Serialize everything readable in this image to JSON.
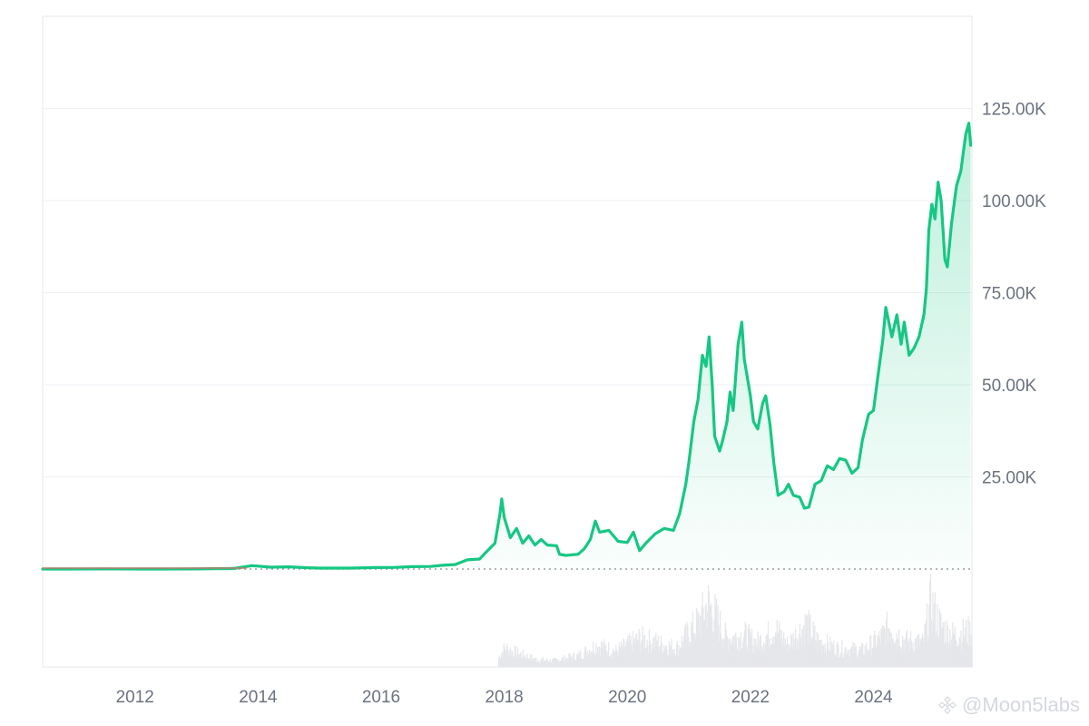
{
  "chart_data": {
    "type": "area",
    "series": [
      {
        "name": "",
        "color": "#16c784",
        "points": [
          [
            2010.5,
            0.1
          ],
          [
            2011.0,
            0.3
          ],
          [
            2011.5,
            15
          ],
          [
            2012.0,
            5
          ],
          [
            2012.5,
            7
          ],
          [
            2013.0,
            13
          ],
          [
            2013.3,
            100
          ],
          [
            2013.6,
            120
          ],
          [
            2013.9,
            900
          ],
          [
            2014.0,
            800
          ],
          [
            2014.2,
            500
          ],
          [
            2014.5,
            600
          ],
          [
            2014.8,
            350
          ],
          [
            2015.0,
            250
          ],
          [
            2015.5,
            250
          ],
          [
            2015.9,
            400
          ],
          [
            2016.2,
            420
          ],
          [
            2016.5,
            650
          ],
          [
            2016.8,
            700
          ],
          [
            2017.0,
            1000
          ],
          [
            2017.2,
            1200
          ],
          [
            2017.4,
            2500
          ],
          [
            2017.6,
            2700
          ],
          [
            2017.7,
            4500
          ],
          [
            2017.85,
            7000
          ],
          [
            2017.93,
            15000
          ],
          [
            2017.96,
            19000
          ],
          [
            2018.0,
            14000
          ],
          [
            2018.1,
            8500
          ],
          [
            2018.2,
            11000
          ],
          [
            2018.3,
            7000
          ],
          [
            2018.4,
            9000
          ],
          [
            2018.5,
            6500
          ],
          [
            2018.6,
            8000
          ],
          [
            2018.7,
            6500
          ],
          [
            2018.85,
            6300
          ],
          [
            2018.9,
            4000
          ],
          [
            2019.0,
            3700
          ],
          [
            2019.2,
            4000
          ],
          [
            2019.3,
            5500
          ],
          [
            2019.4,
            8000
          ],
          [
            2019.48,
            13000
          ],
          [
            2019.55,
            10000
          ],
          [
            2019.7,
            10500
          ],
          [
            2019.85,
            7500
          ],
          [
            2020.0,
            7200
          ],
          [
            2020.1,
            10000
          ],
          [
            2020.2,
            5000
          ],
          [
            2020.3,
            7000
          ],
          [
            2020.45,
            9500
          ],
          [
            2020.6,
            11000
          ],
          [
            2020.75,
            10500
          ],
          [
            2020.85,
            15000
          ],
          [
            2020.95,
            23000
          ],
          [
            2021.0,
            29000
          ],
          [
            2021.08,
            40000
          ],
          [
            2021.15,
            46000
          ],
          [
            2021.22,
            58000
          ],
          [
            2021.28,
            55000
          ],
          [
            2021.33,
            63000
          ],
          [
            2021.38,
            50000
          ],
          [
            2021.42,
            36000
          ],
          [
            2021.5,
            32000
          ],
          [
            2021.55,
            35000
          ],
          [
            2021.62,
            40000
          ],
          [
            2021.67,
            48000
          ],
          [
            2021.72,
            43000
          ],
          [
            2021.8,
            61000
          ],
          [
            2021.86,
            67000
          ],
          [
            2021.9,
            57000
          ],
          [
            2022.0,
            47000
          ],
          [
            2022.05,
            40000
          ],
          [
            2022.12,
            38000
          ],
          [
            2022.2,
            45000
          ],
          [
            2022.25,
            47000
          ],
          [
            2022.32,
            39000
          ],
          [
            2022.38,
            29000
          ],
          [
            2022.45,
            20000
          ],
          [
            2022.55,
            21000
          ],
          [
            2022.62,
            23000
          ],
          [
            2022.7,
            20000
          ],
          [
            2022.8,
            19500
          ],
          [
            2022.88,
            16500
          ],
          [
            2022.95,
            16800
          ],
          [
            2023.05,
            23000
          ],
          [
            2023.15,
            24000
          ],
          [
            2023.25,
            28000
          ],
          [
            2023.35,
            27000
          ],
          [
            2023.45,
            30000
          ],
          [
            2023.55,
            29500
          ],
          [
            2023.65,
            26000
          ],
          [
            2023.75,
            27500
          ],
          [
            2023.82,
            35000
          ],
          [
            2023.92,
            42000
          ],
          [
            2024.0,
            43000
          ],
          [
            2024.07,
            52000
          ],
          [
            2024.15,
            62000
          ],
          [
            2024.2,
            71000
          ],
          [
            2024.3,
            63000
          ],
          [
            2024.38,
            69000
          ],
          [
            2024.45,
            61000
          ],
          [
            2024.5,
            67000
          ],
          [
            2024.58,
            58000
          ],
          [
            2024.66,
            60000
          ],
          [
            2024.74,
            63000
          ],
          [
            2024.82,
            69000
          ],
          [
            2024.86,
            76000
          ],
          [
            2024.9,
            92000
          ],
          [
            2024.95,
            99000
          ],
          [
            2025.0,
            95000
          ],
          [
            2025.05,
            105000
          ],
          [
            2025.1,
            100000
          ],
          [
            2025.16,
            84000
          ],
          [
            2025.2,
            82000
          ],
          [
            2025.27,
            94000
          ],
          [
            2025.35,
            104000
          ],
          [
            2025.42,
            108000
          ],
          [
            2025.5,
            118000
          ],
          [
            2025.55,
            121000
          ],
          [
            2025.58,
            115000
          ]
        ]
      }
    ],
    "x_range": [
      2010.5,
      2025.6
    ],
    "y_range": [
      0,
      150000
    ],
    "x_ticks": [
      {
        "value": 2012,
        "label": "2012"
      },
      {
        "value": 2014,
        "label": "2014"
      },
      {
        "value": 2016,
        "label": "2016"
      },
      {
        "value": 2018,
        "label": "2018"
      },
      {
        "value": 2020,
        "label": "2020"
      },
      {
        "value": 2022,
        "label": "2022"
      },
      {
        "value": 2024,
        "label": "2024"
      }
    ],
    "y_ticks": [
      {
        "value": 25000,
        "label": "25.00K"
      },
      {
        "value": 50000,
        "label": "50.00K"
      },
      {
        "value": 75000,
        "label": "75.00K"
      },
      {
        "value": 100000,
        "label": "100.00K"
      },
      {
        "value": 125000,
        "label": "125.00K"
      }
    ],
    "volume": {
      "color": "#e6e7ea",
      "values": [
        [
          2017.9,
          15
        ],
        [
          2018.0,
          30
        ],
        [
          2018.2,
          22
        ],
        [
          2018.5,
          12
        ],
        [
          2018.8,
          10
        ],
        [
          2019.2,
          18
        ],
        [
          2019.5,
          35
        ],
        [
          2019.8,
          25
        ],
        [
          2020.2,
          45
        ],
        [
          2020.4,
          40
        ],
        [
          2020.8,
          30
        ],
        [
          2021.0,
          55
        ],
        [
          2021.15,
          70
        ],
        [
          2021.3,
          100
        ],
        [
          2021.4,
          85
        ],
        [
          2021.6,
          45
        ],
        [
          2021.9,
          50
        ],
        [
          2022.1,
          38
        ],
        [
          2022.4,
          60
        ],
        [
          2022.6,
          35
        ],
        [
          2022.9,
          68
        ],
        [
          2023.1,
          40
        ],
        [
          2023.4,
          30
        ],
        [
          2023.8,
          26
        ],
        [
          2024.1,
          45
        ],
        [
          2024.25,
          65
        ],
        [
          2024.5,
          42
        ],
        [
          2024.8,
          38
        ],
        [
          2024.92,
          100
        ],
        [
          2025.1,
          62
        ],
        [
          2025.3,
          50
        ],
        [
          2025.5,
          55
        ]
      ]
    },
    "grid": true,
    "legend": "none",
    "title": "",
    "xlabel": "",
    "ylabel": ""
  },
  "watermark": {
    "text": "@Moon5labs",
    "icon": "binance-diamond-icon"
  }
}
